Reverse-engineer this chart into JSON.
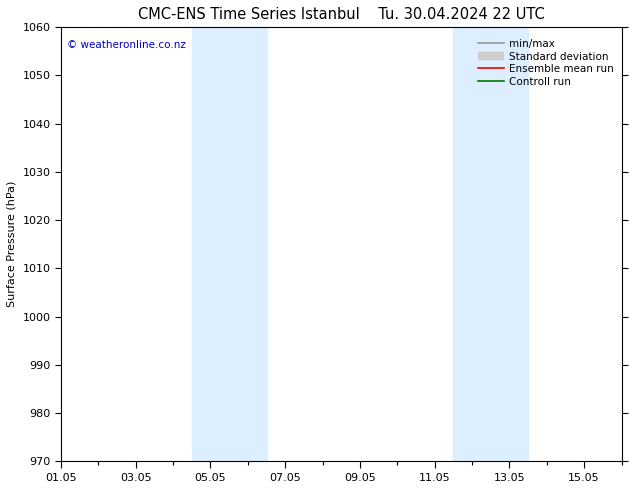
{
  "title": "CMC-ENS Time Series Istanbul    Tu. 30.04.2024 22 UTC",
  "ylabel": "Surface Pressure (hPa)",
  "ylim": [
    970,
    1060
  ],
  "yticks": [
    970,
    980,
    990,
    1000,
    1010,
    1020,
    1030,
    1040,
    1050,
    1060
  ],
  "xlim_start": 0,
  "xlim_end": 15,
  "xtick_labels": [
    "01.05",
    "03.05",
    "05.05",
    "07.05",
    "09.05",
    "11.05",
    "13.05",
    "15.05"
  ],
  "xtick_positions": [
    0,
    2,
    4,
    6,
    8,
    10,
    12,
    14
  ],
  "shaded_bands": [
    {
      "x_start": 3.5,
      "x_end": 5.5,
      "color": "#ddeeff"
    },
    {
      "x_start": 10.5,
      "x_end": 12.5,
      "color": "#ddeeff"
    }
  ],
  "copyright_text": "© weatheronline.co.nz",
  "copyright_color": "#0000cc",
  "legend_entries": [
    {
      "label": "min/max",
      "color": "#999999",
      "lw": 1.2
    },
    {
      "label": "Standard deviation",
      "color": "#cccccc",
      "lw": 6
    },
    {
      "label": "Ensemble mean run",
      "color": "#ff0000",
      "lw": 1.2
    },
    {
      "label": "Controll run",
      "color": "#007700",
      "lw": 1.2
    }
  ],
  "bg_color": "#ffffff",
  "plot_bg_color": "#ffffff",
  "border_color": "#000000",
  "tick_color": "#000000",
  "font_size": 8,
  "title_font_size": 10.5
}
